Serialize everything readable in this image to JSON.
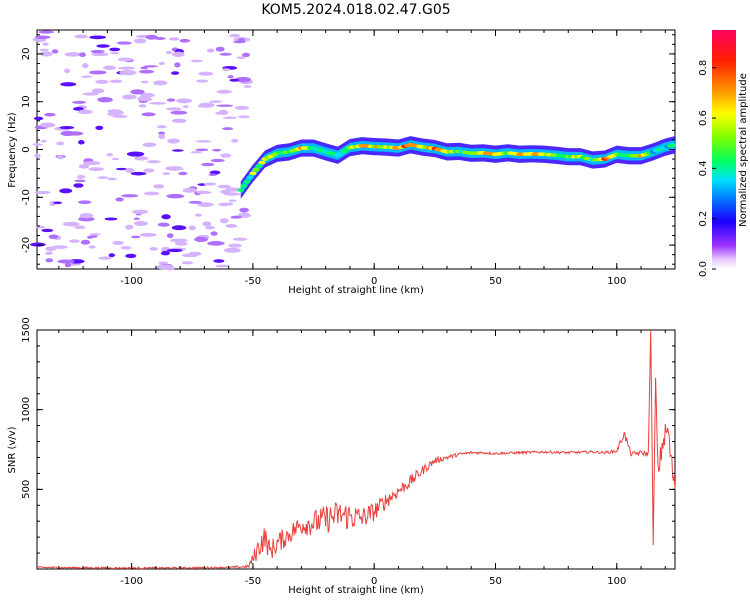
{
  "title": "KOM5.2024.018.02.47.G05",
  "chart_data": [
    {
      "type": "heatmap",
      "xlabel": "Height of straight line (km)",
      "ylabel": "Frequency (Hz)",
      "xlim": [
        -139,
        124
      ],
      "ylim": [
        -25,
        25
      ],
      "xticks": [
        -100,
        -50,
        0,
        50,
        100
      ],
      "yticks": [
        -20,
        -10,
        0,
        10,
        20
      ],
      "ridge": {
        "x": [
          -55,
          -50,
          -45,
          -40,
          -35,
          -30,
          -25,
          -20,
          -15,
          -10,
          -5,
          0,
          5,
          10,
          15,
          20,
          25,
          30,
          35,
          40,
          45,
          50,
          55,
          60,
          65,
          70,
          75,
          80,
          85,
          90,
          95,
          100,
          105,
          110,
          115,
          120,
          124
        ],
        "y": [
          -8.5,
          -5,
          -2,
          -0.8,
          -0.5,
          0.3,
          0.3,
          -0.5,
          -1.2,
          0.4,
          0.8,
          0.6,
          0.5,
          0.3,
          1.0,
          0.5,
          0.2,
          -0.5,
          -0.4,
          -0.8,
          -0.7,
          -1.0,
          -0.7,
          -1.0,
          -0.9,
          -1.0,
          -1.2,
          -1.5,
          -1.5,
          -2.2,
          -2.0,
          -1.0,
          -1.3,
          -1.3,
          -0.5,
          0.5,
          1.0
        ],
        "amplitude": [
          0.45,
          0.6,
          0.65,
          0.55,
          0.6,
          0.85,
          0.5,
          0.55,
          0.45,
          0.6,
          0.8,
          0.75,
          0.65,
          0.85,
          0.9,
          0.7,
          0.85,
          0.75,
          0.55,
          0.6,
          0.7,
          0.8,
          0.65,
          0.75,
          0.8,
          0.7,
          0.6,
          0.55,
          0.7,
          0.5,
          0.9,
          0.6,
          0.6,
          0.75,
          0.4,
          0.45,
          0.5
        ]
      },
      "noise_region_xmax": -52,
      "colorbar": {
        "label": "Normalized spectral amplitude",
        "range": [
          0.0,
          0.95
        ],
        "ticks": [
          "0.0",
          "0.2",
          "0.4",
          "0.6",
          "0.8"
        ]
      }
    },
    {
      "type": "line",
      "xlabel": "Height of straight line (km)",
      "ylabel": "SNR (v/v)",
      "xlim": [
        -139,
        124
      ],
      "ylim": [
        0,
        1500
      ],
      "xticks": [
        -100,
        -50,
        0,
        50,
        100
      ],
      "yticks": [
        500,
        1000,
        1500
      ],
      "color": "#e8413c",
      "series": [
        {
          "x": [
            -139,
            -120,
            -100,
            -80,
            -60,
            -52,
            -50,
            -47,
            -45,
            -43,
            -40,
            -35,
            -30,
            -25,
            -20,
            -15,
            -10,
            -5,
            0,
            5,
            10,
            15,
            20,
            25,
            30,
            35,
            40,
            45,
            50,
            60,
            70,
            80,
            90,
            95,
            100,
            103,
            106,
            110,
            113,
            114,
            115,
            116,
            117,
            119,
            121,
            123,
            124
          ],
          "y": [
            10,
            8,
            6,
            7,
            10,
            15,
            60,
            160,
            200,
            110,
            160,
            220,
            280,
            290,
            310,
            340,
            330,
            320,
            360,
            430,
            490,
            550,
            620,
            680,
            700,
            720,
            730,
            730,
            725,
            730,
            735,
            730,
            735,
            730,
            740,
            850,
            720,
            730,
            720,
            1500,
            150,
            1200,
            600,
            800,
            880,
            600,
            500
          ],
          "noise_amplitude": [
            5,
            5,
            5,
            5,
            5,
            10,
            40,
            80,
            80,
            60,
            70,
            60,
            70,
            80,
            90,
            90,
            90,
            70,
            60,
            50,
            40,
            40,
            30,
            20,
            15,
            10,
            8,
            8,
            8,
            8,
            8,
            8,
            8,
            8,
            10,
            30,
            15,
            15,
            20,
            0,
            0,
            0,
            60,
            80,
            80,
            80,
            60
          ]
        }
      ]
    }
  ]
}
